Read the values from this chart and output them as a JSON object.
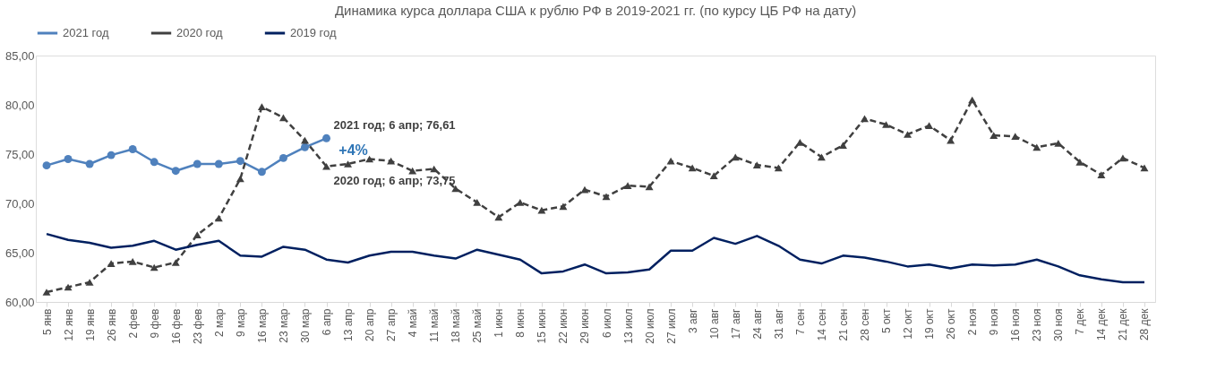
{
  "chart_data": {
    "type": "line",
    "title": "Динамика курса доллара США к рублю РФ в 2019-2021 гг. (по курсу ЦБ РФ на дату)",
    "categories": [
      "5 янв",
      "12 янв",
      "19 янв",
      "26 янв",
      "2 фев",
      "9 фев",
      "16 фев",
      "23 фев",
      "2 мар",
      "9 мар",
      "16 мар",
      "23 мар",
      "30 мар",
      "6 апр",
      "13 апр",
      "20 апр",
      "27 апр",
      "4 май",
      "11 май",
      "18 май",
      "25 май",
      "1 июн",
      "8 июн",
      "15 июн",
      "22 июн",
      "29 июн",
      "6 июл",
      "13 июл",
      "20 июл",
      "27 июл",
      "3 авг",
      "10 авг",
      "17 авг",
      "24 авг",
      "31 авг",
      "7 сен",
      "14 сен",
      "21 сен",
      "28 сен",
      "5 окт",
      "12 окт",
      "19 окт",
      "26 окт",
      "2 ноя",
      "9 ноя",
      "16 ноя",
      "23 ноя",
      "30 ноя",
      "7 дек",
      "14 дек",
      "21 дек",
      "28 дек"
    ],
    "series": [
      {
        "name": "2021 год",
        "color": "#4f81bd",
        "marker": "circle",
        "line_style": "solid",
        "values": [
          73.85,
          74.5,
          74.0,
          74.9,
          75.5,
          74.2,
          73.3,
          74.0,
          74.0,
          74.3,
          73.2,
          74.6,
          75.7,
          76.61,
          null,
          null,
          null,
          null,
          null,
          null,
          null,
          null,
          null,
          null,
          null,
          null,
          null,
          null,
          null,
          null,
          null,
          null,
          null,
          null,
          null,
          null,
          null,
          null,
          null,
          null,
          null,
          null,
          null,
          null,
          null,
          null,
          null,
          null,
          null,
          null,
          null,
          null
        ]
      },
      {
        "name": "2020 год",
        "color": "#404040",
        "marker": "triangle",
        "line_style": "dashed",
        "values": [
          61.0,
          61.5,
          62.0,
          63.9,
          64.1,
          63.5,
          64.0,
          66.8,
          68.5,
          72.5,
          79.8,
          78.7,
          76.4,
          73.75,
          74.0,
          74.5,
          74.3,
          73.3,
          73.5,
          71.5,
          70.1,
          68.6,
          70.1,
          69.3,
          69.7,
          71.4,
          70.7,
          71.8,
          71.7,
          74.3,
          73.6,
          72.8,
          74.7,
          73.9,
          73.6,
          76.2,
          74.7,
          75.9,
          78.6,
          78.0,
          77.0,
          77.9,
          76.4,
          80.5,
          76.9,
          76.8,
          75.7,
          76.1,
          74.2,
          72.9,
          74.6,
          73.6
        ]
      },
      {
        "name": "2019 год",
        "color": "#002060",
        "marker": "none",
        "line_style": "solid",
        "values": [
          66.9,
          66.3,
          66.0,
          65.5,
          65.7,
          66.2,
          65.3,
          65.8,
          66.2,
          64.7,
          64.6,
          65.6,
          65.3,
          64.3,
          64.0,
          64.7,
          65.1,
          65.1,
          64.7,
          64.4,
          65.3,
          64.8,
          64.3,
          62.9,
          63.1,
          63.8,
          62.9,
          63.0,
          63.3,
          65.2,
          65.2,
          66.5,
          65.9,
          66.7,
          65.7,
          64.3,
          63.9,
          64.7,
          64.5,
          64.1,
          63.6,
          63.8,
          63.4,
          63.8,
          63.7,
          63.8,
          64.3,
          63.6,
          62.7,
          62.3,
          62.0,
          62.0
        ]
      }
    ],
    "ylim": [
      60,
      85
    ],
    "yticks": [
      {
        "value": 60,
        "label": "60,00"
      },
      {
        "value": 65,
        "label": "65,00"
      },
      {
        "value": 70,
        "label": "70,00"
      },
      {
        "value": 75,
        "label": "75,00"
      },
      {
        "value": 80,
        "label": "80,00"
      },
      {
        "value": 85,
        "label": "85,00"
      }
    ],
    "grid": false,
    "legend": "top",
    "annotations": [
      {
        "text": "2021 год; 6 апр; 76,61",
        "x": "6 апр",
        "y": 76.61
      },
      {
        "text": "2020 год; 6 апр; 73,75",
        "x": "6 апр",
        "y": 73.75
      },
      "+4%"
    ]
  }
}
